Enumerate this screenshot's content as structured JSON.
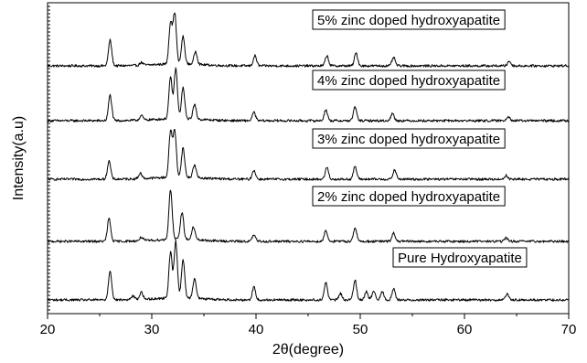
{
  "chart_data": {
    "type": "line",
    "xlabel": "2θ(degree)",
    "ylabel": "Intensity(a.u)",
    "xlim": [
      20,
      70
    ],
    "xticks": [
      20,
      30,
      40,
      50,
      60,
      70
    ],
    "grid": false,
    "series": [
      {
        "name": "5% zinc doped hydroxyapatite",
        "peaks": [
          [
            26.0,
            28
          ],
          [
            29.0,
            3
          ],
          [
            31.8,
            45
          ],
          [
            32.2,
            55
          ],
          [
            33.0,
            30
          ],
          [
            34.2,
            14
          ],
          [
            39.9,
            11
          ],
          [
            46.8,
            11
          ],
          [
            49.6,
            14
          ],
          [
            53.2,
            9
          ],
          [
            64.3,
            5
          ]
        ]
      },
      {
        "name": "4% zinc doped hydroxyapatite",
        "peaks": [
          [
            26.0,
            28
          ],
          [
            29.0,
            5
          ],
          [
            31.8,
            45
          ],
          [
            32.3,
            55
          ],
          [
            33.0,
            34
          ],
          [
            34.1,
            16
          ],
          [
            39.8,
            9
          ],
          [
            46.7,
            12
          ],
          [
            49.5,
            15
          ],
          [
            53.1,
            8
          ],
          [
            64.2,
            5
          ]
        ]
      },
      {
        "name": "3% zinc doped hydroxyapatite",
        "peaks": [
          [
            25.9,
            20
          ],
          [
            28.9,
            6
          ],
          [
            31.8,
            50
          ],
          [
            32.2,
            50
          ],
          [
            33.0,
            32
          ],
          [
            34.1,
            14
          ],
          [
            39.8,
            10
          ],
          [
            46.8,
            13
          ],
          [
            49.5,
            14
          ],
          [
            53.3,
            10
          ],
          [
            64.0,
            4
          ]
        ]
      },
      {
        "name": "2% zinc doped hydroxyapatite",
        "peaks": [
          [
            25.9,
            25
          ],
          [
            29.0,
            4
          ],
          [
            31.8,
            55
          ],
          [
            32.9,
            30
          ],
          [
            34.0,
            14
          ],
          [
            39.8,
            7
          ],
          [
            46.7,
            12
          ],
          [
            49.5,
            15
          ],
          [
            53.2,
            9
          ],
          [
            64.0,
            4
          ]
        ]
      },
      {
        "name": "Pure Hydroxyapatite",
        "peaks": [
          [
            26.0,
            32
          ],
          [
            28.2,
            4
          ],
          [
            29.0,
            8
          ],
          [
            31.8,
            50
          ],
          [
            32.3,
            62
          ],
          [
            33.0,
            42
          ],
          [
            34.1,
            22
          ],
          [
            39.8,
            14
          ],
          [
            46.7,
            19
          ],
          [
            48.1,
            7
          ],
          [
            49.5,
            22
          ],
          [
            50.6,
            9
          ],
          [
            51.3,
            10
          ],
          [
            52.1,
            9
          ],
          [
            53.2,
            12
          ],
          [
            64.1,
            6
          ]
        ]
      }
    ]
  }
}
